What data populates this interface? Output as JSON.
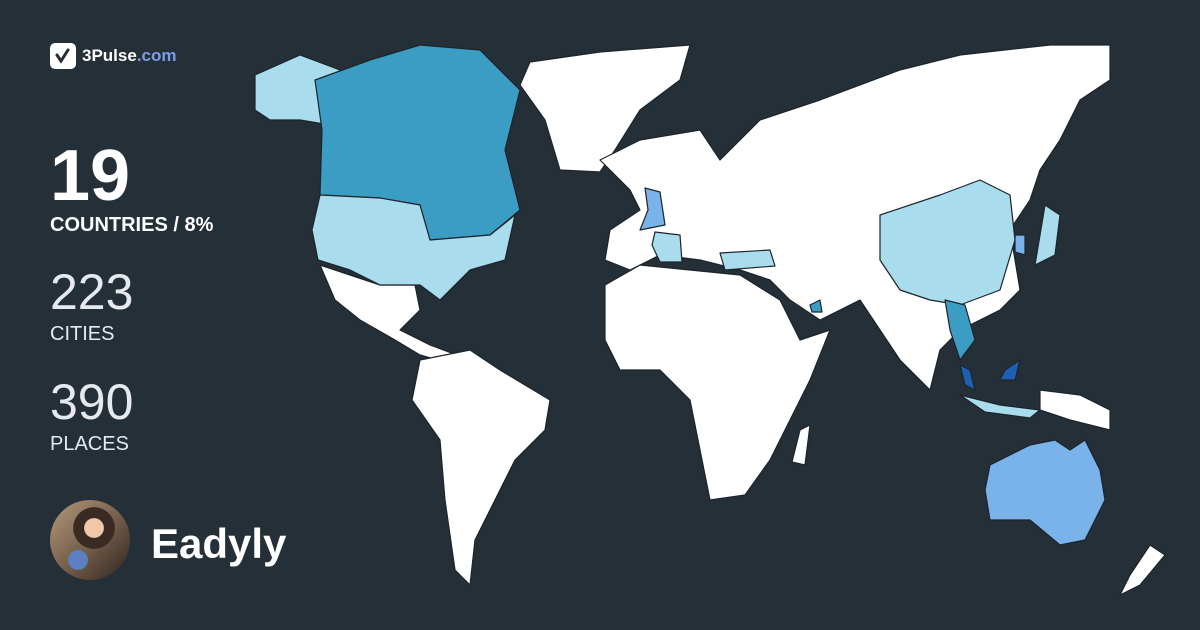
{
  "brand": {
    "name": "3Pulse",
    "domain": ".com",
    "icon": "pulse-check-icon",
    "accent": "#7d9ee6"
  },
  "stats": {
    "countries": {
      "value": "19",
      "label": "COUNTRIES / 8%"
    },
    "cities": {
      "value": "223",
      "label": "CITIES"
    },
    "places": {
      "value": "390",
      "label": "PLACES"
    }
  },
  "user": {
    "name": "Eadyly"
  },
  "map": {
    "background": "#252f38",
    "unvisited_color": "#ffffff",
    "visit_level_colors": [
      "#a9dcec",
      "#7ab3ea",
      "#3b9cc4",
      "#1f5fb0"
    ]
  }
}
